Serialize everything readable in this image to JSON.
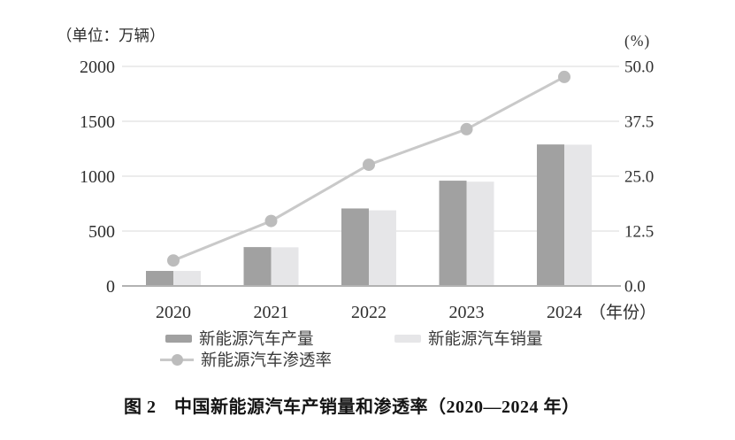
{
  "figure": {
    "unit_left": "（单位：万辆）",
    "unit_right": "(%)",
    "caption": "图 2　中国新能源汽车产销量和渗透率（2020—2024 年）"
  },
  "legend": {
    "production_label": "新能源汽车产量",
    "sales_label": "新能源汽车销量",
    "penetration_label": "新能源汽车渗透率"
  },
  "chart_data": {
    "type": "bar",
    "subtype": "grouped-bar-with-line-combo",
    "title": "图 2　中国新能源汽车产销量和渗透率（2020—2024 年）",
    "categories": [
      "2020",
      "2021",
      "2022",
      "2023",
      "2024"
    ],
    "x_axis_suffix": "（年份）",
    "series": [
      {
        "name": "新能源汽车产量",
        "type": "bar",
        "axis": "left",
        "values": [
          137,
          354,
          706,
          959,
          1289
        ]
      },
      {
        "name": "新能源汽车销量",
        "type": "bar",
        "axis": "left",
        "values": [
          137,
          352,
          689,
          950,
          1287
        ]
      },
      {
        "name": "新能源汽车渗透率",
        "type": "line",
        "axis": "right",
        "values": [
          5.8,
          14.8,
          27.6,
          35.7,
          47.6
        ]
      }
    ],
    "left_axis": {
      "title": "（单位：万辆）",
      "range": [
        0,
        2000
      ],
      "ticks": [
        0,
        500,
        1000,
        1500,
        2000
      ],
      "tick_labels": [
        "0",
        "500",
        "1000",
        "1500",
        "2000"
      ]
    },
    "right_axis": {
      "title": "(%)",
      "range": [
        0,
        50
      ],
      "ticks": [
        0,
        12.5,
        25,
        37.5,
        50
      ],
      "tick_labels": [
        "0.0",
        "12.5",
        "25.0",
        "37.5",
        "50.0"
      ]
    },
    "grid": true,
    "legend_position": "bottom"
  },
  "colors": {
    "bar_production": "#a1a1a1",
    "bar_sales": "#e6e6e8",
    "line": "#c9c9c9",
    "marker": "#bcbcbc",
    "grid": "#d8d8d8",
    "axis": "#b2b2b2",
    "tick_text": "#2e2e2e"
  }
}
